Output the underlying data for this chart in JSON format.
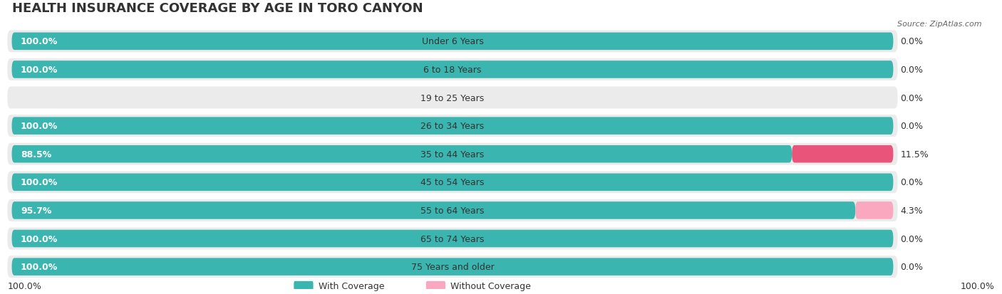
{
  "title": "HEALTH INSURANCE COVERAGE BY AGE IN TORO CANYON",
  "source": "Source: ZipAtlas.com",
  "categories": [
    "Under 6 Years",
    "6 to 18 Years",
    "19 to 25 Years",
    "26 to 34 Years",
    "35 to 44 Years",
    "45 to 54 Years",
    "55 to 64 Years",
    "65 to 74 Years",
    "75 Years and older"
  ],
  "with_coverage": [
    100.0,
    100.0,
    0.0,
    100.0,
    88.5,
    100.0,
    95.7,
    100.0,
    100.0
  ],
  "without_coverage": [
    0.0,
    0.0,
    0.0,
    0.0,
    11.5,
    0.0,
    4.3,
    0.0,
    0.0
  ],
  "color_with": "#3ab5b0",
  "color_without_low": "#f9a8c0",
  "color_without_high": "#e8547a",
  "background_row": "#f0f0f0",
  "background_fig": "#ffffff",
  "title_fontsize": 13,
  "label_fontsize": 9,
  "tick_fontsize": 9,
  "x_left_label": "100.0%",
  "x_right_label": "100.0%",
  "legend_with": "With Coverage",
  "legend_without": "Without Coverage"
}
